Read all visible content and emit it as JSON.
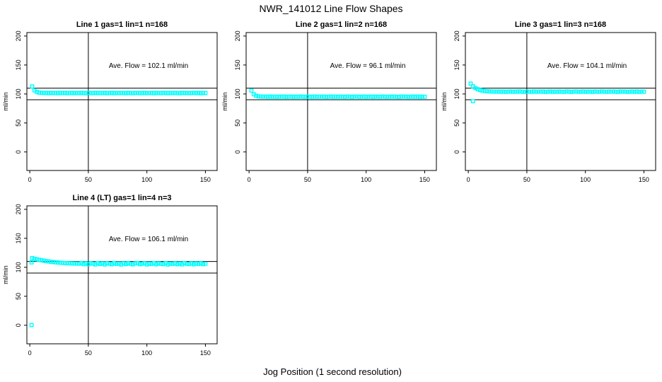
{
  "figure": {
    "title": "NWR_141012  Line Flow Shapes",
    "xlabel": "Jog Position (1 second resolution)",
    "background_color": "#ffffff",
    "point_color": "#00ffff",
    "axis_color": "#000000"
  },
  "chart_data": [
    {
      "type": "scatter",
      "title": "Line 1 gas=1 lin=1 n=168",
      "annotation": "Ave. Flow =  102.1  ml/min",
      "ave_flow_ml_min": 102.1,
      "n": 168,
      "ylabel": "ml/min",
      "xticks": [
        0,
        50,
        100,
        150
      ],
      "yticks": [
        0,
        50,
        100,
        150,
        200
      ],
      "xlim": [
        -2.5,
        160
      ],
      "ylim": [
        -32,
        206
      ],
      "vline_x": 50,
      "hlines_y": [
        110,
        90
      ],
      "x_start": 2,
      "x_step": 2,
      "y": [
        113.0,
        106.2,
        103.4,
        102.3,
        101.9,
        101.8,
        101.9,
        101.4,
        102.0,
        101.5,
        101.8,
        101.4,
        101.9,
        101.6,
        102.0,
        101.3,
        101.7,
        101.9,
        101.4,
        101.8,
        101.5,
        102.0,
        101.6,
        101.3,
        101.9,
        101.7,
        101.4,
        102.0,
        101.5,
        101.8,
        101.6,
        101.9,
        101.3,
        101.7,
        102.0,
        101.4,
        101.8,
        101.5,
        101.9,
        101.6,
        101.4,
        102.0,
        101.7,
        101.3,
        101.8,
        101.9,
        101.5,
        101.6,
        102.0,
        101.4,
        101.7,
        101.8,
        101.3,
        101.9,
        101.6,
        101.5,
        102.0,
        101.7,
        101.4,
        101.8,
        101.6,
        101.9,
        101.5,
        101.3,
        102.0,
        101.7,
        101.8,
        101.4,
        101.6,
        101.9,
        101.5,
        102.0,
        101.3,
        101.7,
        101.6
      ],
      "extra_points": []
    },
    {
      "type": "scatter",
      "title": "Line 2 gas=1 lin=2 n=168",
      "annotation": "Ave. Flow =  96.1  ml/min",
      "ave_flow_ml_min": 96.1,
      "n": 168,
      "ylabel": "ml/min",
      "xticks": [
        0,
        50,
        100,
        150
      ],
      "yticks": [
        0,
        50,
        100,
        150,
        200
      ],
      "xlim": [
        -2.5,
        160
      ],
      "ylim": [
        -32,
        206
      ],
      "vline_x": 50,
      "hlines_y": [
        110,
        90
      ],
      "x_start": 2,
      "x_step": 2,
      "y": [
        106.0,
        99.6,
        97.0,
        95.9,
        95.5,
        95.4,
        95.5,
        95.0,
        95.6,
        95.1,
        95.4,
        95.0,
        95.5,
        95.2,
        95.6,
        94.9,
        95.3,
        95.5,
        95.0,
        95.4,
        95.1,
        95.6,
        95.2,
        94.9,
        95.5,
        95.3,
        95.0,
        95.6,
        95.1,
        95.4,
        95.2,
        95.5,
        94.9,
        95.3,
        95.6,
        95.0,
        95.4,
        95.1,
        95.5,
        95.2,
        95.0,
        95.6,
        95.3,
        94.9,
        95.4,
        95.5,
        95.1,
        95.2,
        95.6,
        95.0,
        95.3,
        95.4,
        94.9,
        95.5,
        95.2,
        95.1,
        95.6,
        95.3,
        95.0,
        95.4,
        95.2,
        95.5,
        95.1,
        94.9,
        95.6,
        95.3,
        95.4,
        95.0,
        95.2,
        95.5,
        95.1,
        95.6,
        94.9,
        95.3,
        95.2
      ],
      "extra_points": []
    },
    {
      "type": "scatter",
      "title": "Line 3 gas=1 lin=3 n=168",
      "annotation": "Ave. Flow =  104.1  ml/min",
      "ave_flow_ml_min": 104.1,
      "n": 168,
      "ylabel": "ml/min",
      "xticks": [
        0,
        50,
        100,
        150
      ],
      "yticks": [
        0,
        50,
        100,
        150,
        200
      ],
      "xlim": [
        -2.5,
        160
      ],
      "ylim": [
        -32,
        206
      ],
      "vline_x": 50,
      "hlines_y": [
        110,
        90
      ],
      "x_start": 2,
      "x_step": 2,
      "y": [
        117.9,
        113.3,
        110.2,
        108.2,
        106.8,
        105.8,
        105.1,
        104.7,
        104.4,
        104.2,
        104.1,
        104.0,
        104.2,
        103.8,
        104.1,
        103.7,
        104.0,
        104.2,
        103.8,
        104.1,
        103.9,
        104.3,
        103.9,
        103.6,
        104.2,
        104.0,
        103.7,
        104.3,
        103.8,
        104.1,
        103.9,
        104.2,
        103.6,
        104.0,
        104.3,
        103.7,
        104.1,
        103.8,
        104.2,
        103.9,
        103.7,
        104.3,
        104.0,
        103.6,
        104.1,
        104.2,
        103.8,
        103.9,
        104.3,
        103.7,
        104.0,
        104.1,
        103.6,
        104.2,
        103.9,
        103.8,
        104.3,
        104.0,
        103.7,
        104.1,
        103.9,
        104.2,
        103.8,
        103.6,
        104.3,
        104.0,
        104.1,
        103.7,
        103.9,
        104.2,
        103.8,
        104.3,
        103.6,
        104.0,
        103.9
      ],
      "extra_points": [
        [
          4,
          87.5
        ]
      ]
    },
    {
      "type": "scatter",
      "title": "Line 4 (LT) gas=1 lin=4 n=3",
      "annotation": "Ave. Flow =  106.1  ml/min",
      "ave_flow_ml_min": 106.1,
      "n": 3,
      "ylabel": "ml/min",
      "xticks": [
        0,
        50,
        100,
        150
      ],
      "yticks": [
        0,
        50,
        100,
        150,
        200
      ],
      "xlim": [
        -2.5,
        160
      ],
      "ylim": [
        -32,
        206
      ],
      "vline_x": 50,
      "hlines_y": [
        110,
        90
      ],
      "x_start": 2,
      "x_step": 2,
      "y": [
        115.8,
        114.7,
        113.7,
        112.9,
        112.1,
        111.4,
        110.7,
        110.1,
        109.5,
        109.0,
        108.6,
        108.3,
        107.9,
        107.6,
        107.3,
        107.0,
        106.9,
        106.7,
        106.5,
        106.4,
        106.2,
        107.4,
        105.4,
        106.9,
        105.2,
        107.1,
        106.3,
        105.0,
        107.2,
        105.6,
        106.8,
        104.9,
        107.0,
        106.1,
        105.3,
        107.3,
        105.8,
        106.6,
        104.8,
        106.9,
        105.5,
        107.1,
        106.0,
        105.1,
        106.7,
        107.2,
        105.4,
        106.2,
        107.0,
        104.9,
        106.5,
        105.7,
        107.3,
        105.2,
        106.8,
        106.0,
        105.5,
        107.1,
        104.8,
        106.4,
        105.9,
        107.0,
        105.3,
        106.6,
        105.0,
        107.2,
        106.1,
        105.6,
        106.9,
        105.2,
        106.7,
        105.8,
        107.0,
        105.4,
        106.2
      ],
      "extra_points": [
        [
          1.5,
          0.3
        ],
        [
          1.5,
          108.5
        ]
      ]
    }
  ]
}
